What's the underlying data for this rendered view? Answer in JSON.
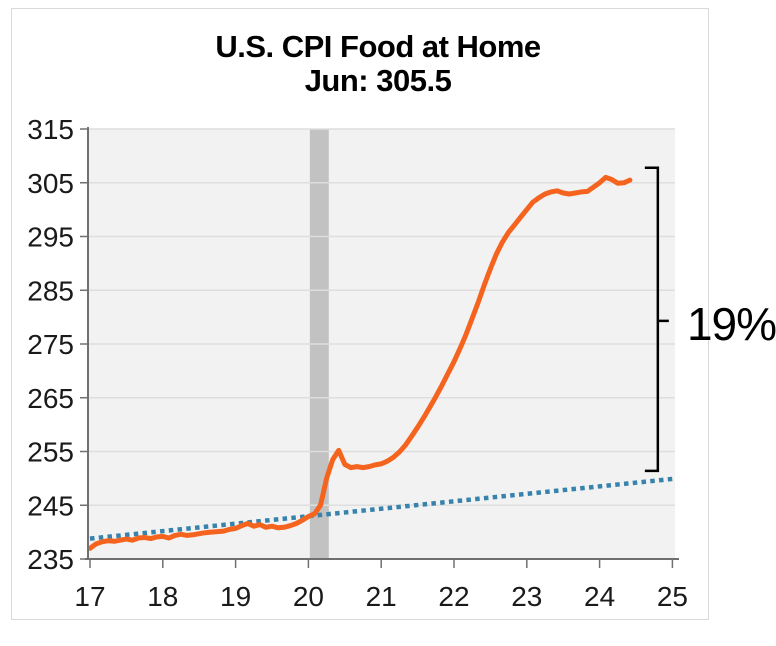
{
  "colors": {
    "series_orange": "#F5641E",
    "trend_blue": "#3783AC",
    "recession_band": "#C2C2C2",
    "plot_bg": "#F2F2F2",
    "grid": "#DEDEDE",
    "axis": "#707070",
    "tick_text": "#1A1A1A",
    "frame": "#D9D9D9",
    "annotation": "#000000"
  },
  "chart_data": {
    "type": "line",
    "title": "U.S. CPI Food at Home",
    "subtitle": "Jun: 305.5",
    "xlim": [
      17,
      25
    ],
    "ylim": [
      235,
      315
    ],
    "x_ticks": [
      17,
      18,
      19,
      20,
      21,
      22,
      23,
      24,
      25
    ],
    "x_tick_labels": [
      "17",
      "18",
      "19",
      "20",
      "21",
      "22",
      "23",
      "24",
      "25"
    ],
    "y_ticks": [
      235,
      245,
      255,
      265,
      275,
      285,
      295,
      305,
      315
    ],
    "grid": "horizontal",
    "legend": "none",
    "series": [
      {
        "name": "U.S. CPI Food at Home index (monthly, Jan 2017 - Jun 2024)",
        "style": "solid",
        "color": "#F5641E",
        "x_start": 17.0,
        "x_step_years": 0.0833333,
        "values": [
          237.0,
          237.8,
          238.2,
          238.4,
          238.3,
          238.5,
          238.7,
          238.5,
          238.9,
          239.0,
          238.8,
          239.1,
          239.2,
          238.9,
          239.4,
          239.6,
          239.4,
          239.5,
          239.7,
          239.9,
          240.0,
          240.1,
          240.2,
          240.5,
          240.7,
          241.2,
          241.6,
          241.1,
          241.4,
          240.9,
          241.1,
          240.8,
          240.9,
          241.2,
          241.6,
          242.2,
          242.9,
          243.4,
          245.0,
          250.0,
          253.5,
          255.2,
          252.6,
          252.0,
          252.2,
          252.0,
          252.2,
          252.5,
          252.7,
          253.2,
          253.9,
          254.9,
          256.2,
          257.8,
          259.5,
          261.3,
          263.2,
          265.2,
          267.3,
          269.5,
          271.7,
          274.2,
          276.8,
          279.8,
          282.8,
          286.0,
          289.0,
          291.8,
          294.0,
          295.8,
          297.2,
          298.6,
          300.0,
          301.4,
          302.2,
          302.9,
          303.3,
          303.5,
          303.1,
          302.9,
          303.1,
          303.3,
          303.4,
          304.2,
          305.0,
          306.0,
          305.6,
          304.9,
          305.0,
          305.5
        ]
      },
      {
        "name": "Dotted trend line",
        "style": "dotted",
        "color": "#3783AC",
        "x": [
          17,
          25
        ],
        "values": [
          238.8,
          249.9
        ]
      }
    ],
    "recession_band": {
      "x_from": 20.02,
      "x_to": 20.28,
      "color": "#C2C2C2"
    },
    "annotation": {
      "label": "19%",
      "bracket_x": 24.8,
      "bracket_top_value": 307.8,
      "bracket_bottom_value": 251.4,
      "label_anchor_value": 279.3,
      "label_x": 25.2
    }
  }
}
